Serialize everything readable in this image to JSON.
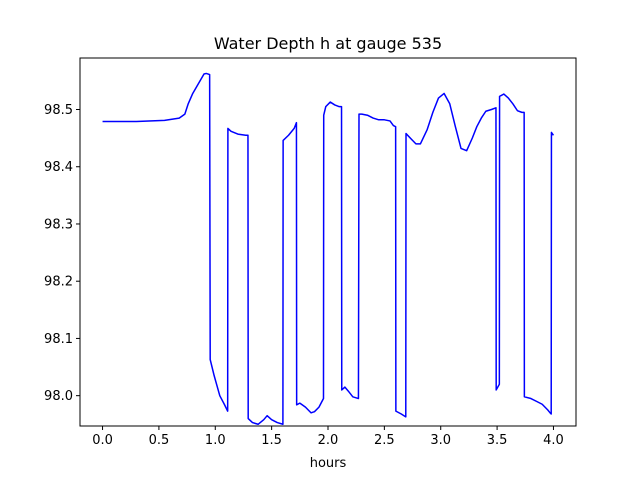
{
  "chart_data": {
    "type": "line",
    "title": "Water Depth h at gauge 535",
    "xlabel": "hours",
    "ylabel": "",
    "xlim": [
      -0.2,
      4.2
    ],
    "ylim": [
      97.947,
      98.59
    ],
    "xticks": [
      0.0,
      0.5,
      1.0,
      1.5,
      2.0,
      2.5,
      3.0,
      3.5,
      4.0
    ],
    "xtick_labels": [
      "0.0",
      "0.5",
      "1.0",
      "1.5",
      "2.0",
      "2.5",
      "3.0",
      "3.5",
      "4.0"
    ],
    "yticks": [
      98.0,
      98.1,
      98.2,
      98.3,
      98.4,
      98.5
    ],
    "ytick_labels": [
      "98.0",
      "98.1",
      "98.2",
      "98.3",
      "98.4",
      "98.5"
    ],
    "grid": false,
    "legend": "none",
    "series": [
      {
        "color": "#0000ff",
        "x": [
          0.0,
          0.3,
          0.55,
          0.68,
          0.73,
          0.76,
          0.8,
          0.85,
          0.9,
          0.92,
          0.95,
          0.955,
          0.99,
          1.04,
          1.08,
          1.11,
          1.112,
          1.14,
          1.2,
          1.27,
          1.29,
          1.292,
          1.33,
          1.38,
          1.43,
          1.46,
          1.5,
          1.55,
          1.6,
          1.602,
          1.65,
          1.7,
          1.72,
          1.722,
          1.75,
          1.8,
          1.85,
          1.88,
          1.92,
          1.96,
          1.962,
          1.98,
          2.02,
          2.06,
          2.1,
          2.12,
          2.122,
          2.15,
          2.18,
          2.22,
          2.27,
          2.275,
          2.3,
          2.35,
          2.4,
          2.45,
          2.5,
          2.55,
          2.58,
          2.6,
          2.602,
          2.65,
          2.69,
          2.692,
          2.74,
          2.78,
          2.82,
          2.88,
          2.93,
          2.98,
          3.03,
          3.08,
          3.13,
          3.18,
          3.23,
          3.28,
          3.32,
          3.36,
          3.4,
          3.45,
          3.49,
          3.492,
          3.52,
          3.522,
          3.56,
          3.6,
          3.64,
          3.68,
          3.72,
          3.74,
          3.742,
          3.8,
          3.85,
          3.9,
          3.95,
          3.97,
          3.98,
          3.982,
          4.0
        ],
        "y": [
          98.479,
          98.479,
          98.481,
          98.485,
          98.492,
          98.51,
          98.528,
          98.545,
          98.562,
          98.563,
          98.561,
          98.063,
          98.035,
          98.0,
          97.985,
          97.973,
          98.467,
          98.462,
          98.457,
          98.455,
          98.455,
          97.96,
          97.953,
          97.95,
          97.958,
          97.965,
          97.958,
          97.953,
          97.95,
          98.446,
          98.455,
          98.467,
          98.477,
          97.984,
          97.987,
          97.98,
          97.97,
          97.972,
          97.98,
          97.995,
          98.49,
          98.505,
          98.513,
          98.508,
          98.505,
          98.505,
          98.01,
          98.015,
          98.008,
          97.998,
          97.995,
          98.492,
          98.492,
          98.49,
          98.485,
          98.482,
          98.482,
          98.48,
          98.472,
          98.47,
          97.973,
          97.968,
          97.963,
          98.458,
          98.448,
          98.44,
          98.44,
          98.465,
          98.495,
          98.52,
          98.528,
          98.51,
          98.47,
          98.432,
          98.428,
          98.45,
          98.47,
          98.485,
          98.497,
          98.5,
          98.503,
          98.01,
          98.02,
          98.523,
          98.527,
          98.52,
          98.51,
          98.498,
          98.495,
          98.495,
          97.998,
          97.995,
          97.99,
          97.985,
          97.975,
          97.97,
          97.968,
          98.46,
          98.455
        ]
      }
    ]
  }
}
